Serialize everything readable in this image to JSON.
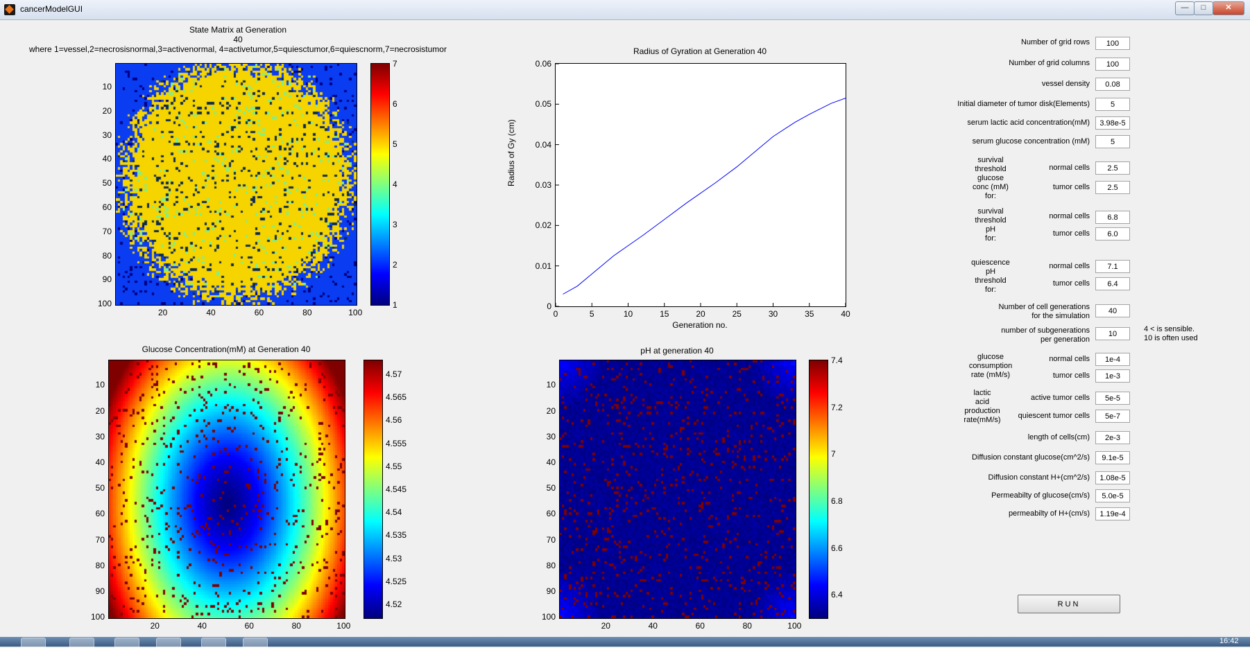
{
  "window": {
    "title": "cancerModelGUI",
    "minimize": "—",
    "maximize": "□",
    "close": "✕"
  },
  "plots": {
    "state": {
      "title_line1": "State Matrix at Generation",
      "title_line2": "40",
      "title_line3": "where 1=vessel,2=necrosisnormal,3=activenormal, 4=activetumor,5=quiesctumor,6=quiescnorm,7=necrosistumor",
      "yticks": [
        "10",
        "20",
        "30",
        "40",
        "50",
        "60",
        "70",
        "80",
        "90",
        "100"
      ],
      "xticks": [
        "20",
        "40",
        "60",
        "80",
        "100"
      ],
      "cbar_ticks": [
        "7",
        "6",
        "5",
        "4",
        "3",
        "2",
        "1"
      ],
      "colors": {
        "vessel": "#00007f",
        "background": "#0a3cf2",
        "tumor": "#f5d400",
        "normal": "#7ff08a",
        "dark": "#0d2b4f"
      }
    },
    "gyration": {
      "title": "Radius of Gyration at Generation 40",
      "ylabel": "Radius of Gy (cm)",
      "xlabel": "Generation no.",
      "yticks": [
        "0.06",
        "0.05",
        "0.04",
        "0.03",
        "0.02",
        "0.01",
        "0"
      ],
      "xticks": [
        "0",
        "5",
        "10",
        "15",
        "20",
        "25",
        "30",
        "35",
        "40"
      ],
      "line_color": "#0000ff"
    },
    "glucose": {
      "title": "Glucose Concentration(mM) at Generation 40",
      "yticks": [
        "10",
        "20",
        "30",
        "40",
        "50",
        "60",
        "70",
        "80",
        "90",
        "100"
      ],
      "xticks": [
        "20",
        "40",
        "60",
        "80",
        "100"
      ],
      "cbar_ticks": [
        "4.57",
        "4.565",
        "4.56",
        "4.555",
        "4.55",
        "4.545",
        "4.54",
        "4.535",
        "4.53",
        "4.525",
        "4.52"
      ]
    },
    "ph": {
      "title": "pH at generation 40",
      "yticks": [
        "10",
        "20",
        "30",
        "40",
        "50",
        "60",
        "70",
        "80",
        "90",
        "100"
      ],
      "xticks": [
        "20",
        "40",
        "60",
        "80",
        "100"
      ],
      "cbar_ticks": [
        "7.4",
        "7.2",
        "7",
        "6.8",
        "6.6",
        "6.4"
      ]
    }
  },
  "chart_data": [
    {
      "type": "line",
      "title": "Radius of Gyration at Generation 40",
      "xlabel": "Generation no.",
      "ylabel": "Radius of Gy (cm)",
      "xlim": [
        0,
        40
      ],
      "ylim": [
        0,
        0.06
      ],
      "x": [
        1,
        3,
        5,
        8,
        10,
        12,
        15,
        18,
        20,
        22,
        25,
        28,
        30,
        33,
        35,
        38,
        40
      ],
      "y": [
        0.003,
        0.005,
        0.008,
        0.0125,
        0.015,
        0.0175,
        0.0215,
        0.0255,
        0.028,
        0.0305,
        0.0345,
        0.039,
        0.042,
        0.0455,
        0.0475,
        0.0502,
        0.0515
      ]
    },
    {
      "type": "heatmap",
      "title": "State Matrix at Generation 40",
      "rows": 100,
      "cols": 100,
      "clim": [
        1,
        7
      ]
    },
    {
      "type": "heatmap",
      "title": "Glucose Concentration(mM) at Generation 40",
      "rows": 100,
      "cols": 100,
      "clim": [
        4.517,
        4.573
      ]
    },
    {
      "type": "heatmap",
      "title": "pH at generation 40",
      "rows": 100,
      "cols": 100,
      "clim": [
        6.3,
        7.4
      ]
    }
  ],
  "params": {
    "grid_rows": {
      "label": "Number of grid rows",
      "value": "100"
    },
    "grid_cols": {
      "label": "Number of grid columns",
      "value": "100"
    },
    "vessel_density": {
      "label": "vessel density",
      "value": "0.08"
    },
    "tumor_diameter": {
      "label": "Initial diameter of tumor disk(Elements)",
      "value": "5"
    },
    "serum_lactic": {
      "label": "serum lactic acid concentration(mM)",
      "value": "3.98e-5"
    },
    "serum_glucose": {
      "label": "serum glucose concentration (mM)",
      "value": "5"
    },
    "surv_glucose": {
      "group_lines": [
        "survival",
        "threshold",
        "glucose",
        "conc (mM)",
        "for:"
      ],
      "normal_label": "normal cells",
      "normal_value": "2.5",
      "tumor_label": "tumor cells",
      "tumor_value": "2.5"
    },
    "surv_ph": {
      "group_lines": [
        "survival",
        "threshold",
        "pH",
        "for:"
      ],
      "normal_label": "normal cells",
      "normal_value": "6.8",
      "tumor_label": "tumor cells",
      "tumor_value": "6.0"
    },
    "quiescence": {
      "group_lines": [
        "quiescence",
        "pH",
        "threshold",
        "for:"
      ],
      "normal_label": "normal cells",
      "normal_value": "7.1",
      "tumor_label": "tumor cells",
      "tumor_value": "6.4"
    },
    "cell_generations": {
      "label_lines": [
        "Number of cell generations",
        "for the simulation"
      ],
      "value": "40"
    },
    "subgenerations": {
      "label_lines": [
        "number of subgenerations",
        "per generation"
      ],
      "value": "10",
      "note_lines": [
        "4 < is sensible.",
        "10 is often used"
      ]
    },
    "glucose_consumption": {
      "group_lines": [
        "glucose",
        "consumption",
        "rate (mM/s)"
      ],
      "normal_label": "normal cells",
      "normal_value": "1e-4",
      "tumor_label": "tumor cells",
      "tumor_value": "1e-3"
    },
    "lactic_production": {
      "group_lines": [
        "lactic",
        "acid",
        "production",
        "rate(mM/s)"
      ],
      "active_label": "active tumor cells",
      "active_value": "5e-5",
      "quiescent_label": "quiescent tumor cells",
      "quiescent_value": "5e-7"
    },
    "cell_length": {
      "label": "length of cells(cm)",
      "value": "2e-3"
    },
    "diff_glucose": {
      "label": "Diffusion constant glucose(cm^2/s)",
      "value": "9.1e-5"
    },
    "diff_h": {
      "label": "Diffusion constant H+(cm^2/s)",
      "value": "1.08e-5"
    },
    "perm_glucose": {
      "label": "Permeabilty of glucose(cm/s)",
      "value": "5.0e-5"
    },
    "perm_h": {
      "label": "permeabilty of H+(cm/s)",
      "value": "1.19e-4"
    }
  },
  "run_button": "RUN",
  "taskbar": {
    "clock": "16:42"
  }
}
